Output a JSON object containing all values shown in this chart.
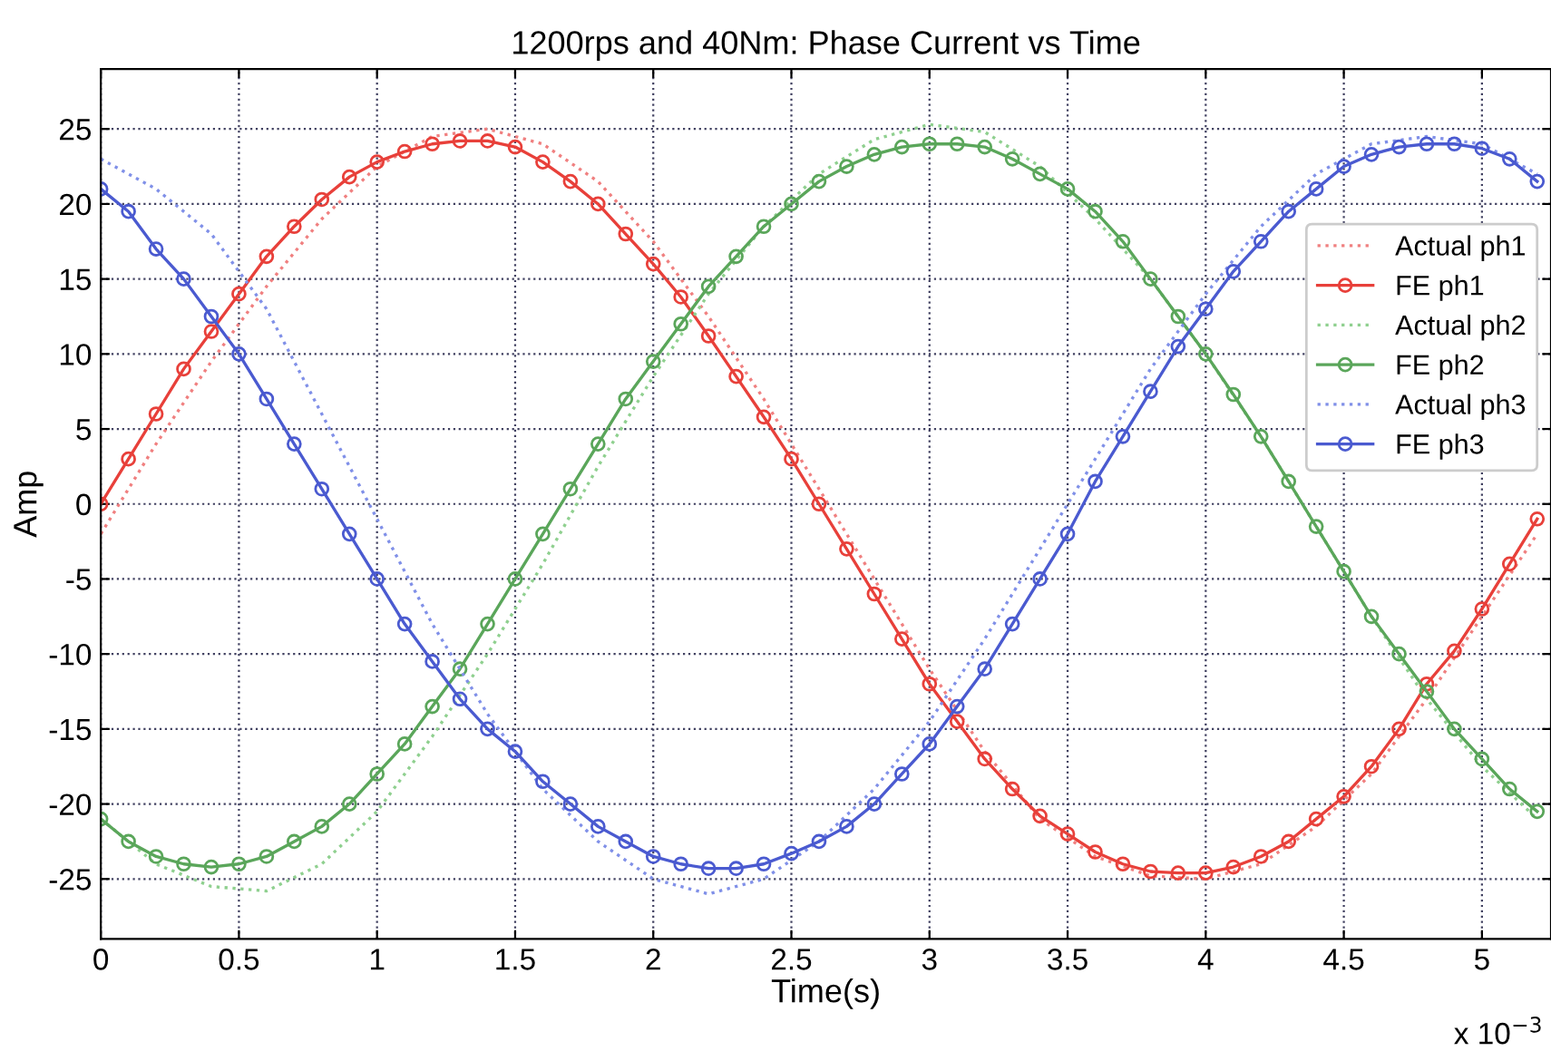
{
  "chart_data": {
    "type": "line",
    "title": "1200rps and 40Nm: Phase Current vs Time",
    "xlabel": "Time(s)",
    "ylabel": "Amp",
    "annotations": [
      "x 10$^{−3}$"
    ],
    "xlim": [
      0,
      5.25
    ],
    "ylim": [
      -29,
      29
    ],
    "xticks": [
      0,
      0.5,
      1,
      1.5,
      2,
      2.5,
      3,
      3.5,
      4,
      4.5,
      5
    ],
    "yticks": [
      -25,
      -20,
      -15,
      -10,
      -5,
      0,
      5,
      10,
      15,
      20,
      25
    ],
    "grid": true,
    "legend": "right",
    "series": [
      {
        "name": "Actual ph1",
        "color": "#f08080",
        "marker": "none",
        "line_style": "dotted",
        "x": [
          0,
          0.2,
          0.4,
          0.6,
          0.8,
          1.0,
          1.2,
          1.4,
          1.6,
          1.8,
          2.0,
          2.2,
          2.4,
          2.6,
          2.8,
          3.0,
          3.2,
          3.4,
          3.6,
          3.8,
          4.0,
          4.2,
          4.4,
          4.6,
          4.8,
          5.0,
          5.2
        ],
        "values": [
          -2,
          4,
          9.5,
          14.5,
          19,
          22.5,
          24.5,
          25,
          24,
          21.5,
          17.5,
          12.5,
          7,
          1,
          -5,
          -11,
          -16.5,
          -21,
          -23.5,
          -24.8,
          -25,
          -24,
          -21.5,
          -18,
          -13,
          -7.5,
          -2
        ]
      },
      {
        "name": "FE ph1",
        "color": "#e8403a",
        "marker": "circle",
        "line_style": "solid",
        "x": [
          0,
          0.1,
          0.2,
          0.3,
          0.4,
          0.5,
          0.6,
          0.7,
          0.8,
          0.9,
          1.0,
          1.1,
          1.2,
          1.3,
          1.4,
          1.5,
          1.6,
          1.7,
          1.8,
          1.9,
          2.0,
          2.1,
          2.2,
          2.3,
          2.4,
          2.5,
          2.6,
          2.7,
          2.8,
          2.9,
          3.0,
          3.1,
          3.2,
          3.3,
          3.4,
          3.5,
          3.6,
          3.7,
          3.8,
          3.9,
          4.0,
          4.1,
          4.2,
          4.3,
          4.4,
          4.5,
          4.6,
          4.7,
          4.8,
          4.9,
          5.0,
          5.1,
          5.2
        ],
        "values": [
          0,
          3,
          6,
          9,
          11.5,
          14,
          16.5,
          18.5,
          20.3,
          21.8,
          22.8,
          23.5,
          24,
          24.2,
          24.2,
          23.8,
          22.8,
          21.5,
          20,
          18,
          16,
          13.8,
          11.2,
          8.5,
          5.8,
          3,
          0,
          -3,
          -6,
          -9,
          -12,
          -14.5,
          -17,
          -19,
          -20.8,
          -22,
          -23.2,
          -24,
          -24.5,
          -24.6,
          -24.6,
          -24.2,
          -23.5,
          -22.5,
          -21,
          -19.5,
          -17.5,
          -15,
          -12,
          -9.8,
          -7,
          -4,
          -1
        ]
      },
      {
        "name": "Actual ph2",
        "color": "#8fd08f",
        "marker": "none",
        "line_style": "dotted",
        "x": [
          0,
          0.2,
          0.4,
          0.6,
          0.8,
          1.0,
          1.2,
          1.4,
          1.6,
          1.8,
          2.0,
          2.2,
          2.4,
          2.6,
          2.8,
          3.0,
          3.2,
          3.4,
          3.6,
          3.8,
          4.0,
          4.2,
          4.4,
          4.6,
          4.8,
          5.0,
          5.2
        ],
        "values": [
          -21,
          -24,
          -25.5,
          -25.8,
          -24,
          -20.5,
          -15.5,
          -10,
          -4,
          2.5,
          8.5,
          14,
          18.5,
          22,
          24.3,
          25.3,
          24.8,
          22.5,
          19,
          15,
          10,
          4.5,
          -1.5,
          -7.5,
          -13,
          -17.5,
          -21
        ]
      },
      {
        "name": "FE ph2",
        "color": "#5aa65a",
        "marker": "circle",
        "line_style": "solid",
        "x": [
          0,
          0.1,
          0.2,
          0.3,
          0.4,
          0.5,
          0.6,
          0.7,
          0.8,
          0.9,
          1.0,
          1.1,
          1.2,
          1.3,
          1.4,
          1.5,
          1.6,
          1.7,
          1.8,
          1.9,
          2.0,
          2.1,
          2.2,
          2.3,
          2.4,
          2.5,
          2.6,
          2.7,
          2.8,
          2.9,
          3.0,
          3.1,
          3.2,
          3.3,
          3.4,
          3.5,
          3.6,
          3.7,
          3.8,
          3.9,
          4.0,
          4.1,
          4.2,
          4.3,
          4.4,
          4.5,
          4.6,
          4.7,
          4.8,
          4.9,
          5.0,
          5.1,
          5.2
        ],
        "values": [
          -21,
          -22.5,
          -23.5,
          -24,
          -24.2,
          -24,
          -23.5,
          -22.5,
          -21.5,
          -20,
          -18,
          -16,
          -13.5,
          -11,
          -8,
          -5,
          -2,
          1,
          4,
          7,
          9.5,
          12,
          14.5,
          16.5,
          18.5,
          20,
          21.5,
          22.5,
          23.3,
          23.8,
          24,
          24,
          23.8,
          23,
          22,
          21,
          19.5,
          17.5,
          15,
          12.5,
          10,
          7.3,
          4.5,
          1.5,
          -1.5,
          -4.5,
          -7.5,
          -10,
          -12.5,
          -15,
          -17,
          -19,
          -20.5
        ]
      },
      {
        "name": "Actual ph3",
        "color": "#8090e8",
        "marker": "none",
        "line_style": "dotted",
        "x": [
          0,
          0.2,
          0.4,
          0.6,
          0.8,
          1.0,
          1.2,
          1.4,
          1.6,
          1.8,
          2.0,
          2.2,
          2.4,
          2.6,
          2.8,
          3.0,
          3.2,
          3.4,
          3.6,
          3.8,
          4.0,
          4.2,
          4.4,
          4.6,
          4.8,
          5.0,
          5.2
        ],
        "values": [
          23,
          21,
          18,
          13,
          6,
          -1,
          -8,
          -14,
          -19,
          -22.5,
          -25,
          -26,
          -25,
          -22.5,
          -19,
          -14.5,
          -9,
          -3,
          3,
          9,
          14,
          18.5,
          22,
          24,
          24.5,
          24,
          22
        ]
      },
      {
        "name": "FE ph3",
        "color": "#4a5ad0",
        "marker": "circle",
        "line_style": "solid",
        "x": [
          0,
          0.1,
          0.2,
          0.3,
          0.4,
          0.5,
          0.6,
          0.7,
          0.8,
          0.9,
          1.0,
          1.1,
          1.2,
          1.3,
          1.4,
          1.5,
          1.6,
          1.7,
          1.8,
          1.9,
          2.0,
          2.1,
          2.2,
          2.3,
          2.4,
          2.5,
          2.6,
          2.7,
          2.8,
          2.9,
          3.0,
          3.1,
          3.2,
          3.3,
          3.4,
          3.5,
          3.6,
          3.7,
          3.8,
          3.9,
          4.0,
          4.1,
          4.2,
          4.3,
          4.4,
          4.5,
          4.6,
          4.7,
          4.8,
          4.9,
          5.0,
          5.1,
          5.2
        ],
        "values": [
          21,
          19.5,
          17,
          15,
          12.5,
          10,
          7,
          4,
          1,
          -2,
          -5,
          -8,
          -10.5,
          -13,
          -15,
          -16.5,
          -18.5,
          -20,
          -21.5,
          -22.5,
          -23.5,
          -24,
          -24.3,
          -24.3,
          -24,
          -23.3,
          -22.5,
          -21.5,
          -20,
          -18,
          -16,
          -13.5,
          -11,
          -8,
          -5,
          -2,
          1.5,
          4.5,
          7.5,
          10.5,
          13,
          15.5,
          17.5,
          19.5,
          21,
          22.5,
          23.3,
          23.8,
          24,
          24,
          23.7,
          23,
          21.5
        ]
      }
    ]
  }
}
